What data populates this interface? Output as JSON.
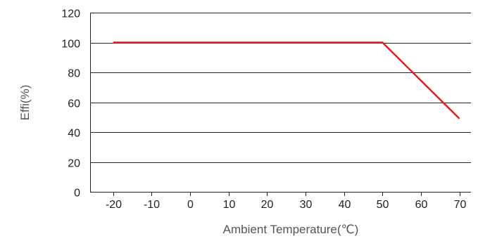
{
  "chart_data": {
    "type": "line",
    "title": "",
    "xlabel": "Ambient Temperature(℃)",
    "ylabel": "Effi(%)",
    "xlim": [
      -26,
      73
    ],
    "ylim": [
      0,
      120
    ],
    "x_ticks": [
      -20,
      -10,
      0,
      10,
      20,
      30,
      40,
      50,
      60,
      70
    ],
    "y_ticks": [
      0,
      20,
      40,
      60,
      80,
      100,
      120
    ],
    "x_tick_labels": [
      "-20",
      "-10",
      "0",
      "10",
      "20",
      "30",
      "40",
      "50",
      "60",
      "70"
    ],
    "y_tick_labels": [
      "0",
      "20",
      "40",
      "60",
      "80",
      "100",
      "120"
    ],
    "grid": "horizontal",
    "legend": "none",
    "series": [
      {
        "color": "#e02020",
        "x": [
          -20,
          50,
          70
        ],
        "y": [
          100,
          100,
          49
        ]
      }
    ]
  }
}
